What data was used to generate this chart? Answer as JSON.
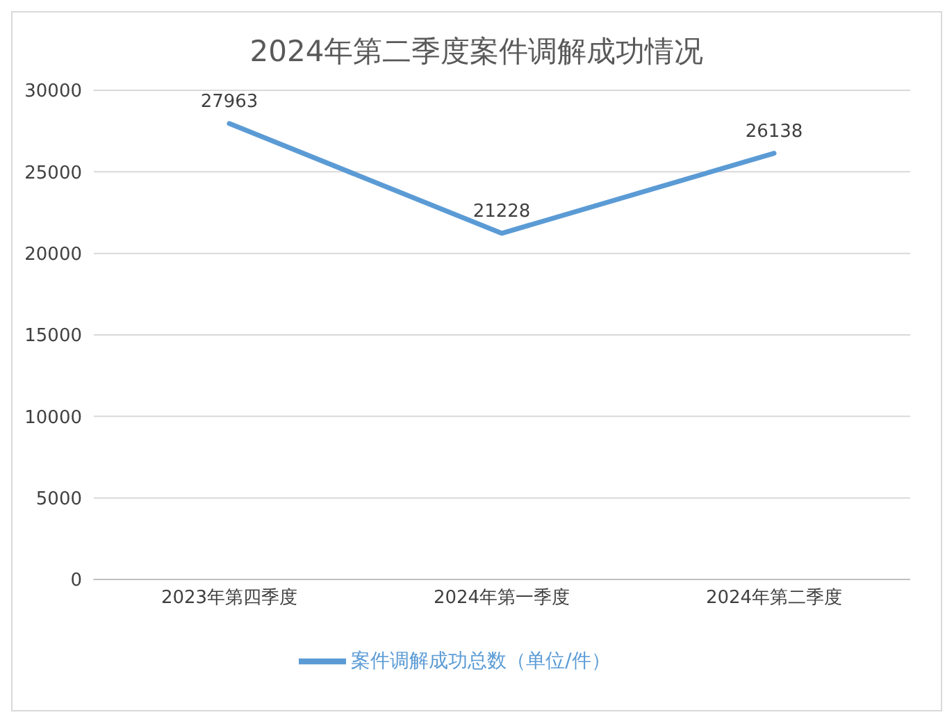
{
  "chart_data": {
    "type": "line",
    "title": "2024年第二季度案件调解成功情况",
    "categories": [
      "2023年第四季度",
      "2024年第一季度",
      "2024年第二季度"
    ],
    "series": [
      {
        "name": "案件调解成功总数（单位/件）",
        "color": "#5b9bd5",
        "values": [
          27963,
          21228,
          26138
        ]
      }
    ],
    "ylim": [
      0,
      30000
    ],
    "yticks": [
      0,
      5000,
      10000,
      15000,
      20000,
      25000,
      30000
    ],
    "grid": "y",
    "legend": "bottom",
    "data_labels": true,
    "marker": "none",
    "line_style": "solid"
  }
}
